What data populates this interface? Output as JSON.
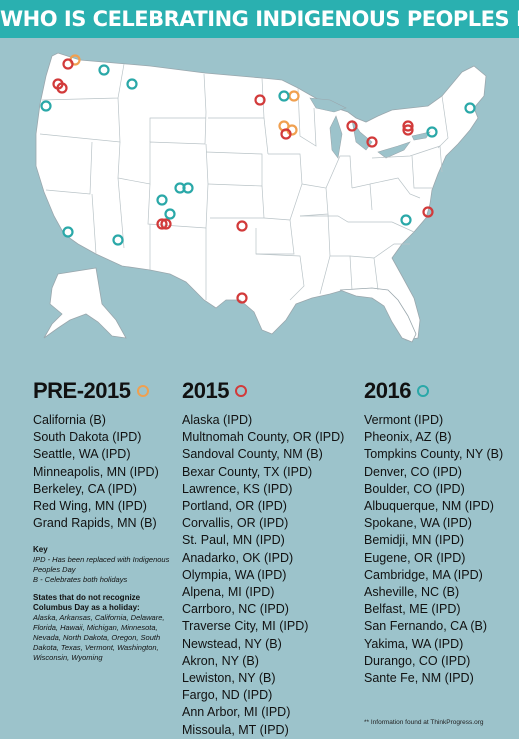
{
  "title": "WHO IS CELEBRATING INDIGENOUS PEOPLES DAY?",
  "colors": {
    "banner": "#2ab0b0",
    "background": "#9cc3cb",
    "pre2015": "#f0a050",
    "y2015": "#d23a3a",
    "y2016": "#2aa8a8",
    "land": "#ffffff",
    "border": "#9aa7ad"
  },
  "columns": {
    "pre2015": {
      "heading": "PRE-2015",
      "items": [
        "California (B)",
        "South Dakota (IPD)",
        "Seattle, WA (IPD)",
        "Minneapolis, MN (IPD)",
        "Berkeley, CA (IPD)",
        "Red Wing, MN (IPD)",
        "Grand Rapids, MN (B)"
      ]
    },
    "y2015": {
      "heading": "2015",
      "items": [
        "Alaska (IPD)",
        "Multnomah County, OR (IPD)",
        "Sandoval County, NM (B)",
        "Bexar County, TX (IPD)",
        "Lawrence, KS (IPD)",
        "Portland, OR (IPD)",
        "Corvallis, OR (IPD)",
        "St. Paul, MN (IPD)",
        "Anadarko, OK (IPD)",
        "Olympia, WA (IPD)",
        "Alpena, MI (IPD)",
        "Carrboro, NC (IPD)",
        "Traverse City, MI (IPD)",
        "Newstead, NY (B)",
        "Akron, NY (B)",
        "Lewiston, NY (B)",
        "Fargo, ND (IPD)",
        "Ann Arbor, MI (IPD)",
        "Missoula, MT (IPD)"
      ]
    },
    "y2016": {
      "heading": "2016",
      "items": [
        "Vermont (IPD)",
        "Pheonix, AZ (B)",
        "Tompkins County, NY (B)",
        "Denver, CO (IPD)",
        "Boulder, CO (IPD)",
        "Albuquerque, NM (IPD)",
        "Spokane, WA (IPD)",
        "Bemidji, MN (IPD)",
        "Eugene, OR (IPD)",
        "Cambridge, MA (IPD)",
        "Asheville, NC (B)",
        "Belfast, ME (IPD)",
        "San Fernando, CA (B)",
        "Yakima, WA (IPD)",
        "Durango, CO (IPD)",
        "Sante Fe, NM (IPD)"
      ]
    }
  },
  "key": {
    "title": "Key",
    "ipd": "IPD - Has been replaced with Indigenous Peoples Day",
    "b": "B - Celebrates both holidays",
    "states_title": "States that do not recognize Columbus Day as a holiday:",
    "states": "Alaska, Arkansas, California, Delaware, Florida, Hawaii, Michigan, Minnesota, Nevada, North Dakota, Oregon, South Dakota, Texas, Vermont, Washington, Wisconsin, Wyoming"
  },
  "source": "** Information found at ThinkProgress.org"
}
